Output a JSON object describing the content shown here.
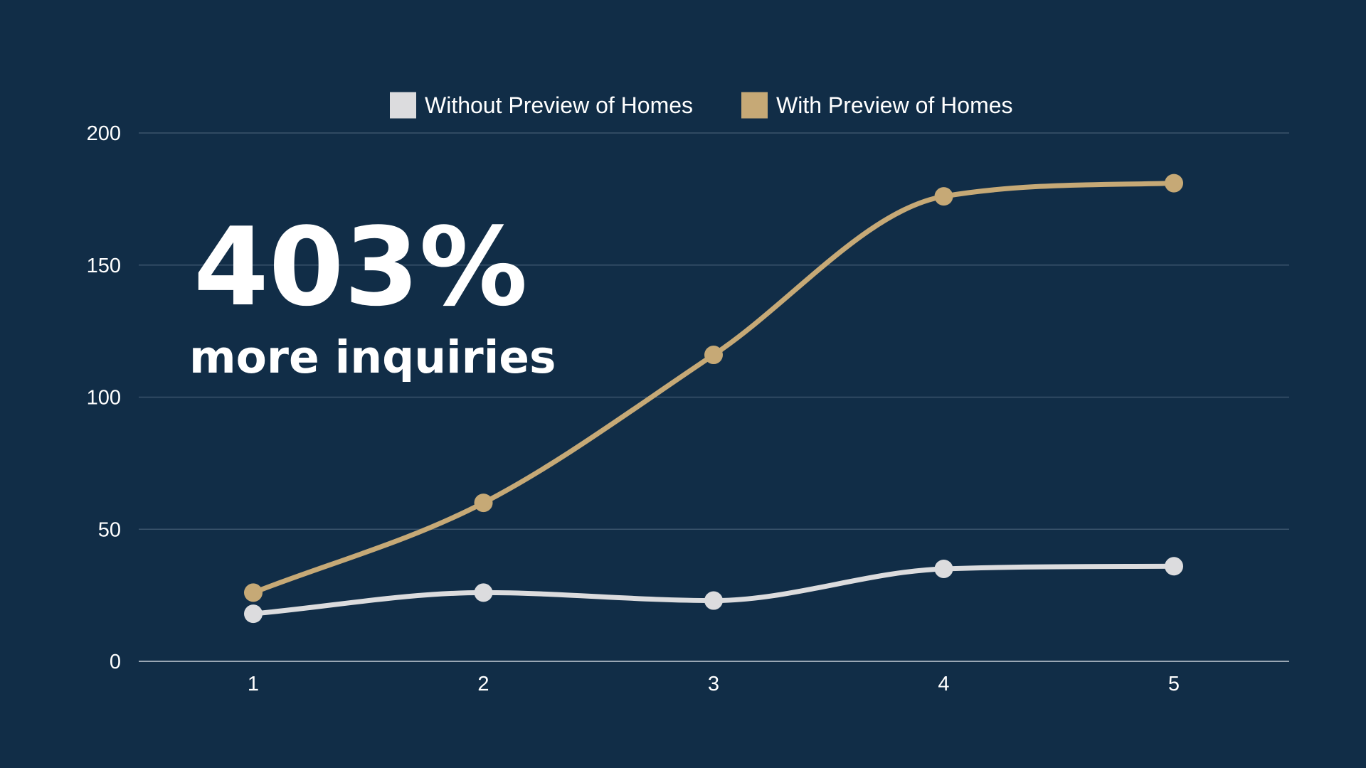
{
  "headline": {
    "value": "403%",
    "caption": "more inquiries"
  },
  "colors": {
    "background": "#112d47",
    "gridline": "#3a546c",
    "axis": "#c7d0d8",
    "text": "#ffffff"
  },
  "chart_data": {
    "type": "line",
    "x": [
      1,
      2,
      3,
      4,
      5
    ],
    "xticks": [
      "1",
      "2",
      "3",
      "4",
      "5"
    ],
    "yticks": [
      "0",
      "50",
      "100",
      "150",
      "200"
    ],
    "ylim": [
      0,
      200
    ],
    "grid": true,
    "legend": "top-center",
    "smooth": true,
    "series": [
      {
        "name": "Without Preview of Homes",
        "color": "#dcdcde",
        "values": [
          18,
          26,
          23,
          35,
          36
        ]
      },
      {
        "name": "With Preview of Homes",
        "color": "#c6a976",
        "values": [
          26,
          60,
          116,
          176,
          181
        ]
      }
    ]
  }
}
